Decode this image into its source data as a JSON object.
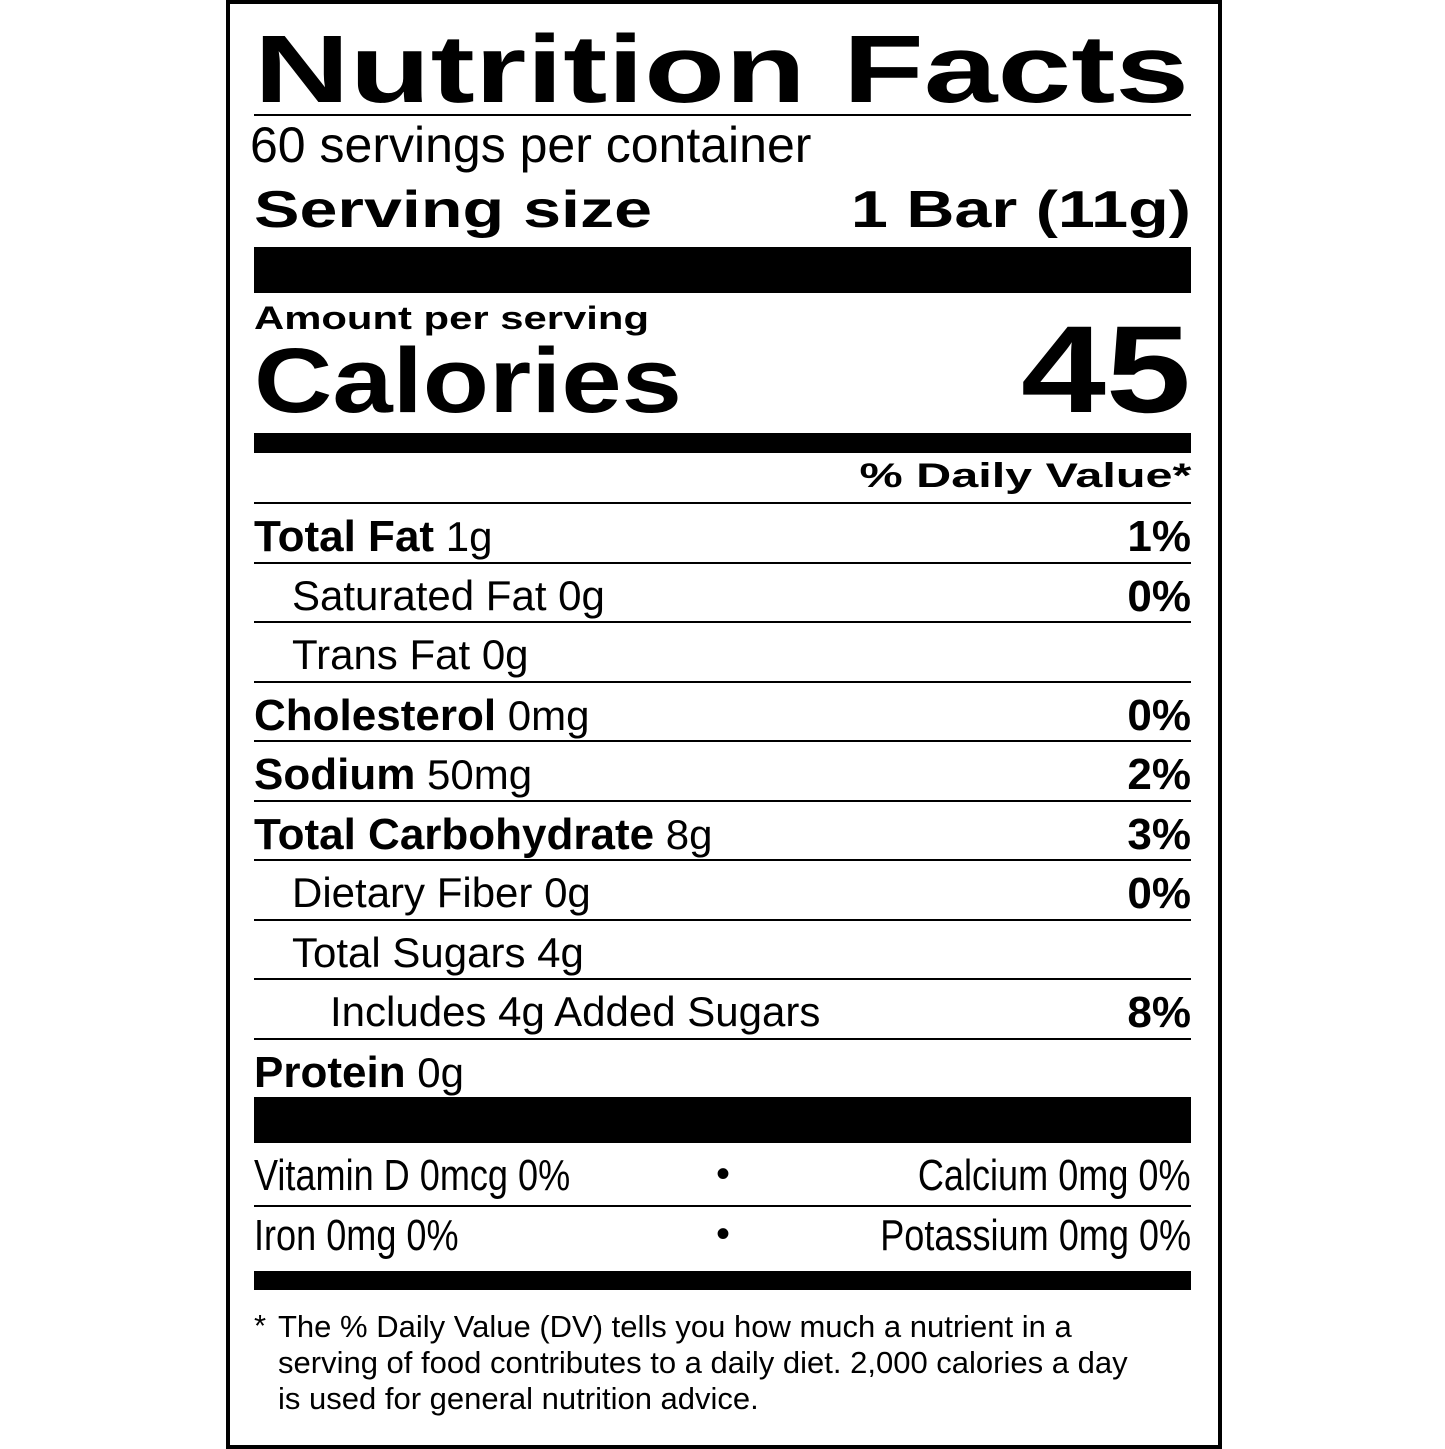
{
  "title": "Nutrition Facts",
  "servings_per_container": "60 servings per container",
  "serving_size": {
    "label": "Serving size",
    "value": "1 Bar (11g)"
  },
  "amount_per_serving": "Amount per serving",
  "calories": {
    "label": "Calories",
    "value": "45"
  },
  "daily_value_header": "% Daily Value*",
  "nutrients": [
    {
      "name": "Total Fat",
      "amount": "1g",
      "dv": "1%",
      "bold": true,
      "indent": 0
    },
    {
      "name": "Saturated Fat",
      "amount": "0g",
      "dv": "0%",
      "bold": false,
      "indent": 1
    },
    {
      "name": "Trans Fat",
      "amount": "0g",
      "dv": "",
      "bold": false,
      "indent": 1
    },
    {
      "name": "Cholesterol",
      "amount": "0mg",
      "dv": "0%",
      "bold": true,
      "indent": 0
    },
    {
      "name": "Sodium",
      "amount": "50mg",
      "dv": "2%",
      "bold": true,
      "indent": 0
    },
    {
      "name": "Total Carbohydrate",
      "amount": "8g",
      "dv": "3%",
      "bold": true,
      "indent": 0
    },
    {
      "name": "Dietary Fiber",
      "amount": "0g",
      "dv": "0%",
      "bold": false,
      "indent": 1
    },
    {
      "name": "Total Sugars",
      "amount": "4g",
      "dv": "",
      "bold": false,
      "indent": 1
    },
    {
      "name": "Includes 4g Added Sugars",
      "amount": "",
      "dv": "8%",
      "bold": false,
      "indent": 2
    },
    {
      "name": "Protein",
      "amount": "0g",
      "dv": "",
      "bold": true,
      "indent": 0
    }
  ],
  "vitamins": [
    {
      "left": "Vitamin D 0mcg 0%",
      "bullet": "•",
      "right": "Calcium 0mg 0%"
    },
    {
      "left": "Iron 0mg 0%",
      "bullet": "•",
      "right": "Potassium 0mg 0%"
    }
  ],
  "footnote": {
    "asterisk": "*",
    "lines": [
      "The % Daily Value (DV) tells you how much a nutrient in a",
      "serving of food contributes to a daily diet. 2,000 calories a day",
      "is used for general nutrition advice."
    ]
  }
}
